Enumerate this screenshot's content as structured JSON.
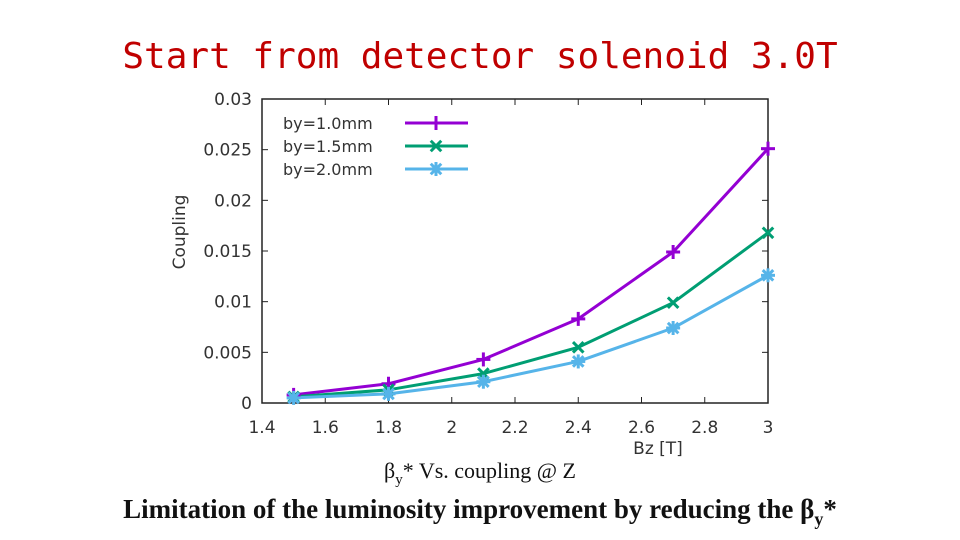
{
  "slide": {
    "title": "Start from detector solenoid 3.0T",
    "caption": {
      "beta": "β",
      "beta_sub": "y",
      "rest": "* Vs. coupling  @ Z"
    },
    "footer": {
      "text": "Limitation of the luminosity improvement by reducing the ",
      "beta": "β",
      "beta_sub": "y",
      "star": "*"
    }
  },
  "chart_data": {
    "type": "line",
    "xlabel": "Bz [T]",
    "ylabel": "Coupling",
    "xlim": [
      1.4,
      3.0
    ],
    "ylim": [
      0,
      0.03
    ],
    "xticks": [
      "1.4",
      "1.6",
      "1.8",
      "2",
      "2.2",
      "2.4",
      "2.6",
      "2.8",
      "3"
    ],
    "yticks": [
      "0",
      "0.005",
      "0.01",
      "0.015",
      "0.02",
      "0.025",
      "0.03"
    ],
    "legend_position": "top-left",
    "x": [
      1.5,
      1.8,
      2.1,
      2.4,
      2.7,
      3.0
    ],
    "series": [
      {
        "name": "by=1.0mm",
        "color": "#9400d3",
        "marker": "plus",
        "values": [
          0.0008,
          0.0019,
          0.0043,
          0.0083,
          0.0149,
          0.0251
        ]
      },
      {
        "name": "by=1.5mm",
        "color": "#009e73",
        "marker": "cross",
        "values": [
          0.0006,
          0.0013,
          0.0029,
          0.0055,
          0.0099,
          0.0168
        ]
      },
      {
        "name": "by=2.0mm",
        "color": "#56b4e9",
        "marker": "star",
        "values": [
          0.0005,
          0.0009,
          0.0021,
          0.0041,
          0.0074,
          0.0126
        ]
      }
    ]
  }
}
